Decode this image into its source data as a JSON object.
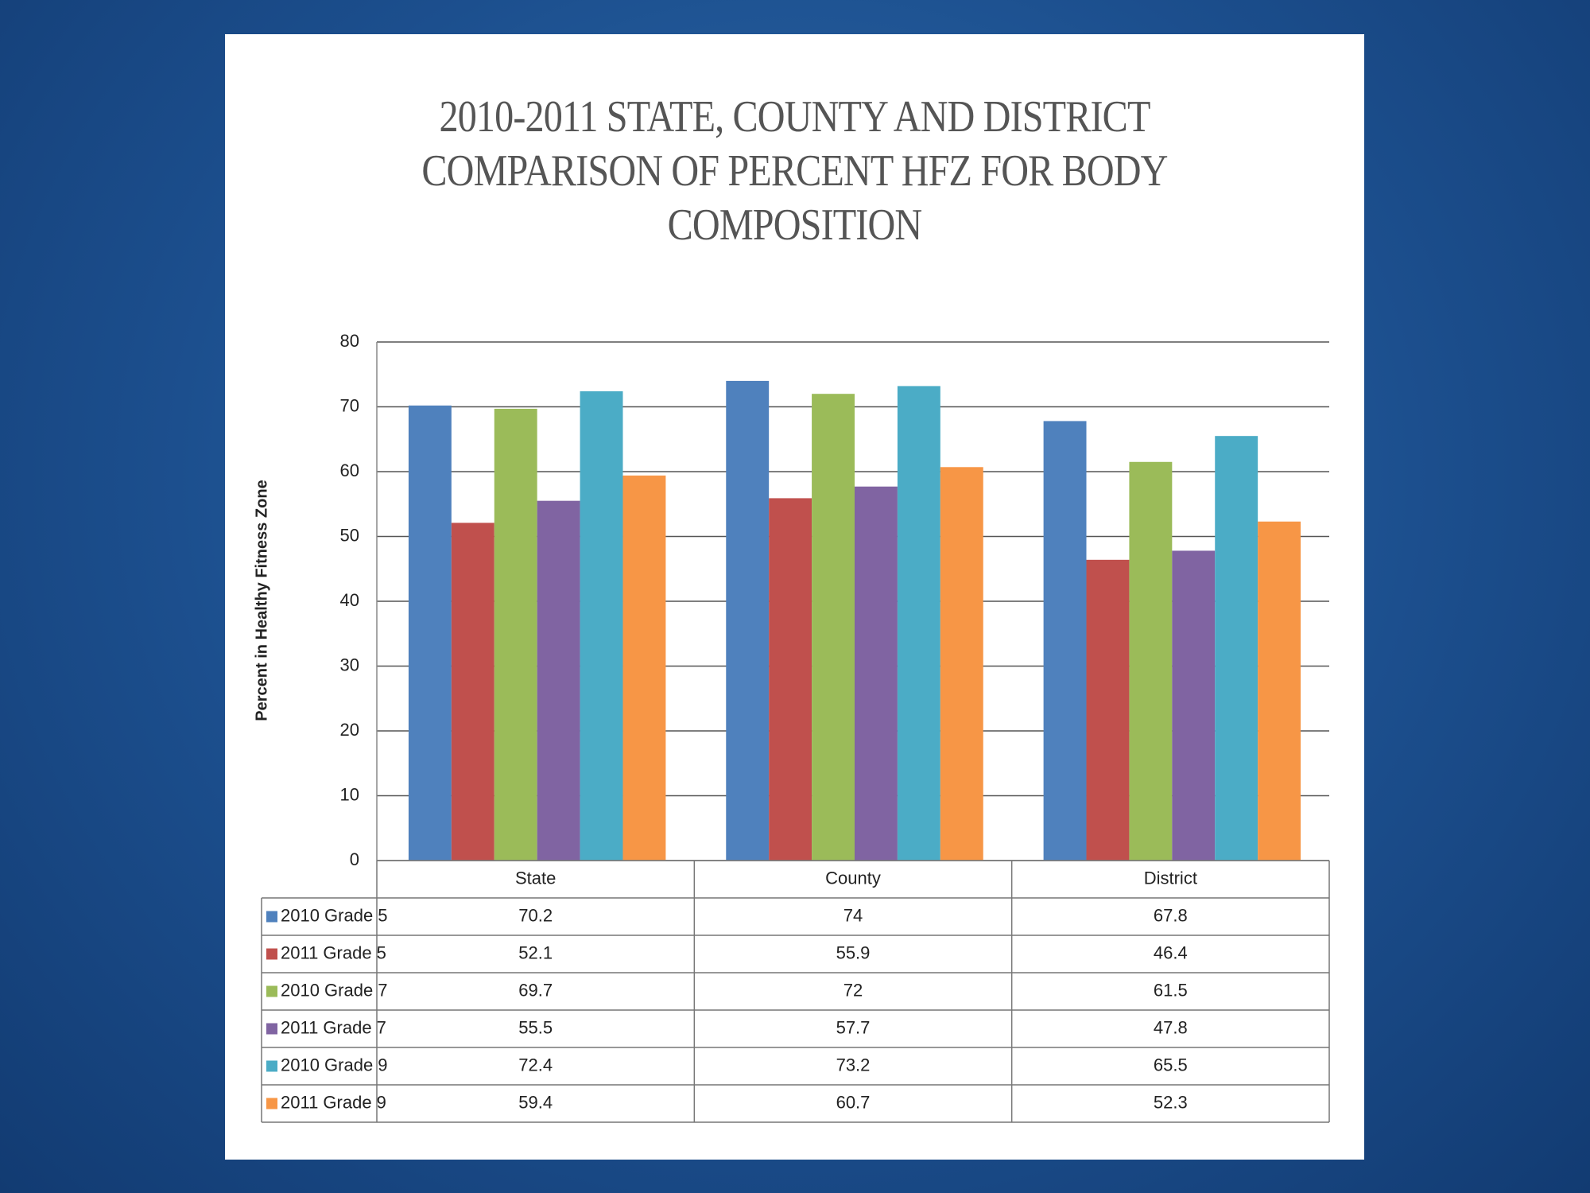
{
  "chart_data": {
    "type": "bar",
    "title": "2010-2011 STATE, COUNTY AND DISTRICT COMPARISON OF PERCENT HFZ FOR BODY COMPOSITION",
    "y_label": "Percent in Healthy Fitness Zone",
    "categories": [
      "State",
      "County",
      "District"
    ],
    "series": [
      {
        "name": "2010 Grade 5",
        "color": "#4f81bd",
        "values": [
          70.2,
          74,
          67.8
        ]
      },
      {
        "name": "2011 Grade 5",
        "color": "#c0504d",
        "values": [
          52.1,
          55.9,
          46.4
        ]
      },
      {
        "name": "2010 Grade 7",
        "color": "#9bbb59",
        "values": [
          69.7,
          72,
          61.5
        ]
      },
      {
        "name": "2011 Grade 7",
        "color": "#8064a2",
        "values": [
          55.5,
          57.7,
          47.8
        ]
      },
      {
        "name": "2010 Grade 9",
        "color": "#4bacc6",
        "values": [
          72.4,
          73.2,
          65.5
        ]
      },
      {
        "name": "2011 Grade 9",
        "color": "#f79646",
        "values": [
          59.4,
          60.7,
          52.3
        ]
      }
    ],
    "ylim": [
      0,
      80
    ],
    "yticks": [
      0,
      10,
      20,
      30,
      40,
      50,
      60,
      70,
      80
    ],
    "grid": true,
    "data_table": true
  }
}
